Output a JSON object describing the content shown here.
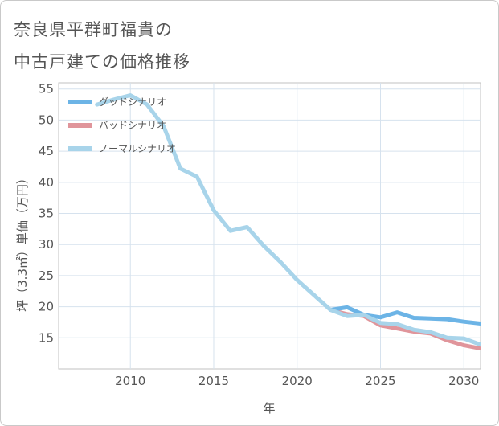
{
  "title_lines": [
    "奈良県平群町福貴の",
    "中古戸建ての価格推移"
  ],
  "chart_data": {
    "type": "line",
    "title": "奈良県平群町福貴の中古戸建ての価格推移",
    "xlabel": "年",
    "ylabel": "坪（3.3㎡）単価（万円）",
    "xlim": [
      2005.7,
      2031
    ],
    "ylim": [
      10,
      56
    ],
    "xticks": [
      2010,
      2015,
      2020,
      2025,
      2030
    ],
    "yticks": [
      15,
      20,
      25,
      30,
      35,
      40,
      45,
      50,
      55
    ],
    "grid": true,
    "legend_position": "top-left",
    "series": [
      {
        "name": "グッドシナリオ",
        "color": "#6cb4e6",
        "x": [
          2022,
          2023,
          2024,
          2025,
          2026,
          2027,
          2028,
          2029,
          2030,
          2031
        ],
        "y": [
          19.5,
          19.9,
          18.7,
          18.3,
          19.1,
          18.2,
          18.1,
          18.0,
          17.6,
          17.3
        ]
      },
      {
        "name": "バッドシナリオ",
        "color": "#e0959b",
        "x": [
          2022,
          2023,
          2024,
          2025,
          2026,
          2027,
          2028,
          2029,
          2030,
          2031
        ],
        "y": [
          19.5,
          18.8,
          18.5,
          17.0,
          16.5,
          16.0,
          15.7,
          14.6,
          13.8,
          13.3
        ]
      },
      {
        "name": "ノーマルシナリオ",
        "color": "#a8d4ea",
        "x": [
          2008,
          2009,
          2010,
          2011,
          2012,
          2013,
          2014,
          2015,
          2016,
          2017,
          2018,
          2019,
          2020,
          2021,
          2022,
          2023,
          2024,
          2025,
          2026,
          2027,
          2028,
          2029,
          2030,
          2031
        ],
        "y": [
          52.5,
          53.3,
          54.0,
          52.5,
          49.0,
          42.2,
          40.9,
          35.5,
          32.2,
          32.8,
          29.8,
          27.2,
          24.3,
          21.9,
          19.5,
          18.5,
          18.7,
          17.4,
          17.2,
          16.3,
          15.9,
          15.0,
          14.9,
          13.9
        ]
      }
    ]
  }
}
